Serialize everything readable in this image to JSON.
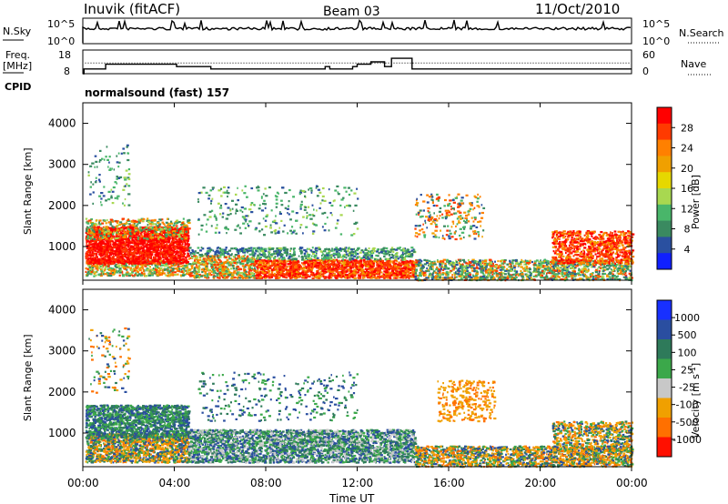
{
  "header": {
    "station": "Inuvik (fitACF)",
    "beam": "Beam 03",
    "date": "11/Oct/2010"
  },
  "nsky_panel": {
    "left_label": "N.Sky",
    "left_ticks": [
      "10^5",
      "10^0"
    ],
    "right_label": "N.Search",
    "right_ticks": [
      "10^5",
      "10^0"
    ]
  },
  "freq_panel": {
    "label_line1": "Freq.",
    "label_line2": "[MHz]",
    "left_ticks": [
      "18",
      "8"
    ],
    "right_label": "Nave",
    "right_ticks": [
      "60",
      "0"
    ],
    "cpid_label": "CPID",
    "cpid_value": "normalsound (fast) 157"
  },
  "time_axis": {
    "ticks": [
      "00:00",
      "04:00",
      "08:00",
      "12:00",
      "16:00",
      "20:00",
      "00:00"
    ],
    "label": "Time UT"
  },
  "chart_data": [
    {
      "type": "heatmap",
      "panel": "power",
      "ylabel": "Slant Range [km]",
      "yticks": [
        "1000",
        "2000",
        "3000",
        "4000"
      ],
      "ylim": [
        180,
        4500
      ],
      "xlim_hours": [
        0,
        24
      ],
      "colorbar": {
        "label": "Power [dB]",
        "ticks": [
          "28",
          "24",
          "20",
          "16",
          "12",
          "8",
          "4"
        ],
        "colors": [
          "#ff0000",
          "#ff3a00",
          "#ff8000",
          "#f0a000",
          "#e6d800",
          "#a8d850",
          "#49b66a",
          "#3a8a60",
          "#2a50a0",
          "#1020ff"
        ]
      }
    },
    {
      "type": "heatmap",
      "panel": "velocity",
      "ylabel": "Slant Range [km]",
      "yticks": [
        "1000",
        "2000",
        "3000",
        "4000"
      ],
      "ylim": [
        180,
        4500
      ],
      "xlim_hours": [
        0,
        24
      ],
      "colorbar": {
        "label": "Velocity [m s^-1]",
        "ticks": [
          "1000",
          "500",
          "100",
          "25",
          "-25",
          "-100",
          "-500",
          "-1000"
        ],
        "colors": [
          "#1830ff",
          "#2a4ea0",
          "#2e7a5a",
          "#3ba84a",
          "#c8c8c8",
          "#f0a000",
          "#ff7000",
          "#ff1000"
        ]
      }
    }
  ]
}
